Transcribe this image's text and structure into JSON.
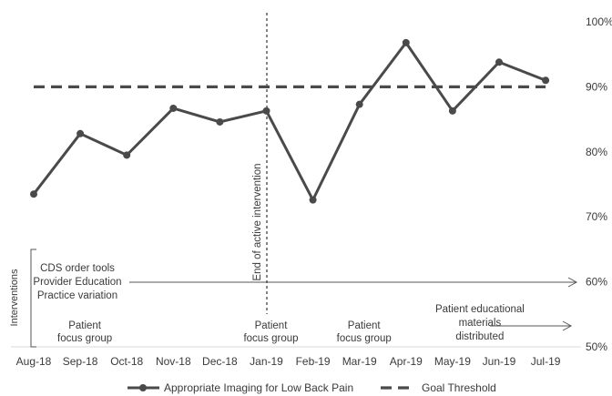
{
  "chart_data": {
    "type": "line",
    "categories": [
      "Aug-18",
      "Sep-18",
      "Oct-18",
      "Nov-18",
      "Dec-18",
      "Jan-19",
      "Feb-19",
      "Mar-19",
      "Apr-19",
      "May-19",
      "Jun-19",
      "Jul-19"
    ],
    "series": [
      {
        "name": "Appropriate Imaging for Low Back Pain",
        "values": [
          73.5,
          82.8,
          79.5,
          86.7,
          84.6,
          86.3,
          72.6,
          87.3,
          96.8,
          86.3,
          93.8,
          91.0
        ],
        "style": "solid-with-markers",
        "color": "#4a4a4a"
      },
      {
        "name": "Goal Threshold",
        "values": [
          90,
          90,
          90,
          90,
          90,
          90,
          90,
          90,
          90,
          90,
          90,
          90
        ],
        "style": "dashed",
        "color": "#4a4a4a"
      }
    ],
    "y_axis": {
      "position": "right",
      "ylim": [
        50,
        100
      ],
      "ticks": [
        "50%",
        "60%",
        "70%",
        "80%",
        "90%",
        "100%"
      ]
    },
    "grid": false,
    "legend_position": "bottom",
    "vertical_marker": {
      "after_category": "Jan-19",
      "label": "End of active intervention"
    },
    "interventions": {
      "axis_label": "Interventions",
      "ongoing": {
        "start_category": "Aug-18",
        "lines": [
          "CDS order tools",
          "Provider Education",
          "Practice variation"
        ]
      },
      "focus_groups": [
        {
          "category": "Sep-18",
          "lines": [
            "Patient",
            "focus group"
          ]
        },
        {
          "category": "Jan-19",
          "lines": [
            "Patient",
            "focus group"
          ]
        },
        {
          "category": "Mar-19",
          "lines": [
            "Patient",
            "focus group"
          ]
        }
      ],
      "materials": {
        "category": "May-19",
        "lines": [
          "Patient educational",
          "materials",
          "distributed"
        ]
      }
    }
  }
}
